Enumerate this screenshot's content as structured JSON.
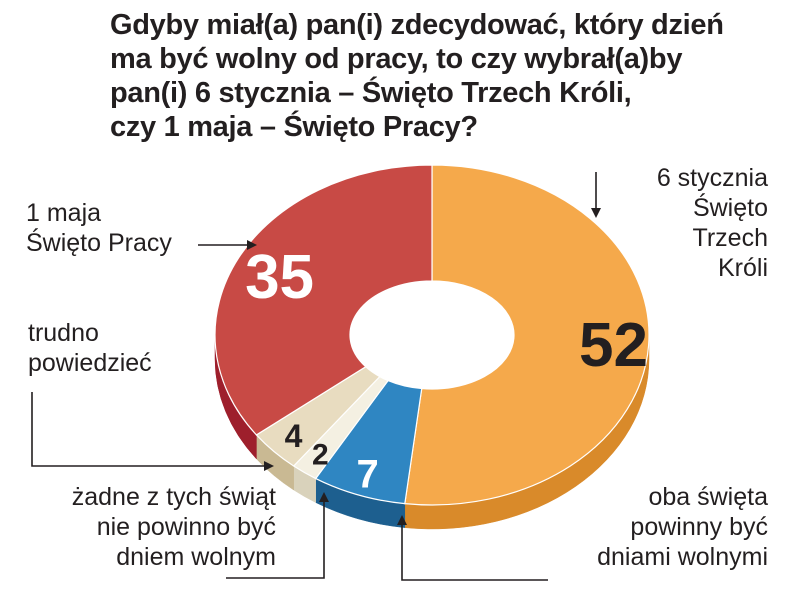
{
  "title_lines": [
    "Gdyby miał(a) pan(i) zdecydować, który dzień",
    "ma być wolny od pracy, to czy wybrał(a)by",
    "pan(i) 6 stycznia – Święto Trzech Króli,",
    "czy 1 maja – Święto Pracy?"
  ],
  "chart_data": {
    "type": "pie",
    "style": "donut-3d",
    "slices": [
      {
        "label_lines": [
          "6 stycznia",
          "Święto",
          "Trzech",
          "Króli"
        ],
        "value": 52,
        "value_label": "52",
        "color": "#f5a94b",
        "side_color": "#d98a2a",
        "text_color": "#231f20"
      },
      {
        "label_lines": [
          "oba święta",
          "powinny być",
          "dniami wolnymi"
        ],
        "value": 7,
        "value_label": "7",
        "color": "#2f86c2",
        "side_color": "#1d5f8f",
        "text_color": "#ffffff"
      },
      {
        "label_lines": [
          "żadne z tych świąt",
          "nie powinno być",
          "dniem wolnym"
        ],
        "value": 2,
        "value_label": "2",
        "color": "#f4f0e2",
        "side_color": "#d9d2bb",
        "text_color": "#231f20"
      },
      {
        "label_lines": [
          "trudno",
          "powiedzieć"
        ],
        "value": 4,
        "value_label": "4",
        "color": "#e8dcc0",
        "side_color": "#c9b993",
        "text_color": "#231f20"
      },
      {
        "label_lines": [
          "1 maja",
          "Święto Pracy"
        ],
        "value": 35,
        "value_label": "35",
        "color": "#c84a45",
        "side_color": "#9e1f2c",
        "text_color": "#ffffff"
      }
    ]
  }
}
